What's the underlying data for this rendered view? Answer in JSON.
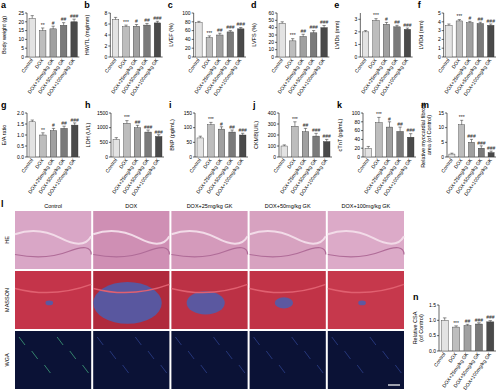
{
  "chart_data": [
    {
      "type": "bar",
      "title": "a",
      "y_label": "Body weight (g)",
      "categories": [
        "Control",
        "DOX",
        "DOX+25mg/kg GK",
        "DOX+50mg/kg GK",
        "DOX+100mg/kg GK"
      ],
      "values": [
        22,
        15,
        16,
        18,
        20
      ],
      "errors": [
        1.5,
        1.5,
        1.5,
        1.5,
        1.5
      ],
      "annotations": [
        null,
        "**",
        "#",
        "##",
        "###"
      ],
      "colors": [
        "#e3e3e3",
        "#bdbdbd",
        "#a0a0a0",
        "#7a7a7a",
        "#4a4a4a"
      ],
      "ylim": [
        0,
        25
      ],
      "yticks": [
        0,
        5,
        10,
        15,
        20,
        25
      ]
    },
    {
      "type": "bar",
      "title": "b",
      "y_label": "HW/TL (mg/mm)",
      "categories": [
        "Control",
        "DOX",
        "DOX+25mg/kg GK",
        "DOX+50mg/kg GK",
        "DOX+100mg/kg GK"
      ],
      "values": [
        6.8,
        5.5,
        5.6,
        5.8,
        6.2
      ],
      "errors": [
        0.4,
        0.3,
        0.3,
        0.3,
        0.3
      ],
      "annotations": [
        null,
        "***",
        "#",
        "##",
        "###"
      ],
      "colors": [
        "#e3e3e3",
        "#bdbdbd",
        "#a0a0a0",
        "#7a7a7a",
        "#4a4a4a"
      ],
      "ylim": [
        0,
        8
      ],
      "yticks": [
        0,
        2,
        4,
        6,
        8
      ]
    },
    {
      "type": "bar",
      "title": "c",
      "y_label": "LVEF (%)",
      "categories": [
        "Control",
        "DOX",
        "DOX+25mg/kg GK",
        "DOX+50mg/kg GK",
        "DOX+100mg/kg GK"
      ],
      "values": [
        78,
        44,
        50,
        57,
        64
      ],
      "errors": [
        3,
        4,
        4,
        3,
        3
      ],
      "annotations": [
        null,
        "***",
        "##",
        "###",
        "###"
      ],
      "colors": [
        "#e3e3e3",
        "#bdbdbd",
        "#a0a0a0",
        "#7a7a7a",
        "#4a4a4a"
      ],
      "ylim": [
        0,
        100
      ],
      "yticks": [
        0,
        20,
        40,
        60,
        80,
        100
      ]
    },
    {
      "type": "bar",
      "title": "d",
      "y_label": "LVFS (%)",
      "categories": [
        "Control",
        "DOX",
        "DOX+25mg/kg GK",
        "DOX+50mg/kg GK",
        "DOX+100mg/kg GK"
      ],
      "values": [
        46,
        22,
        28,
        33,
        40
      ],
      "errors": [
        2,
        3,
        3,
        3,
        3
      ],
      "annotations": [
        null,
        "***",
        "##",
        "###",
        "###"
      ],
      "colors": [
        "#e3e3e3",
        "#bdbdbd",
        "#a0a0a0",
        "#7a7a7a",
        "#4a4a4a"
      ],
      "ylim": [
        0,
        60
      ],
      "yticks": [
        0,
        10,
        20,
        30,
        40,
        50,
        60
      ]
    },
    {
      "type": "bar",
      "title": "e",
      "y_label": "LVIDs (mm)",
      "categories": [
        "Control",
        "DOX",
        "DOX+25mg/kg GK",
        "DOX+50mg/kg GK",
        "DOX+100mg/kg GK"
      ],
      "values": [
        2.0,
        2.9,
        2.6,
        2.4,
        2.2
      ],
      "errors": [
        0.1,
        0.15,
        0.15,
        0.12,
        0.1
      ],
      "annotations": [
        null,
        "***",
        "#",
        "##",
        "###"
      ],
      "colors": [
        "#e3e3e3",
        "#bdbdbd",
        "#a0a0a0",
        "#7a7a7a",
        "#4a4a4a"
      ],
      "ylim": [
        0,
        3.5
      ],
      "yticks": [
        0,
        1,
        2,
        3
      ]
    },
    {
      "type": "bar",
      "title": "f",
      "y_label": "LVIDd (mm)",
      "categories": [
        "Control",
        "DOX",
        "DOX+25mg/kg GK",
        "DOX+50mg/kg GK",
        "DOX+100mg/kg GK"
      ],
      "values": [
        3.6,
        4.1,
        3.9,
        3.8,
        3.6
      ],
      "errors": [
        0.15,
        0.15,
        0.15,
        0.15,
        0.15
      ],
      "annotations": [
        null,
        "***",
        "#",
        "##",
        "###"
      ],
      "colors": [
        "#e3e3e3",
        "#bdbdbd",
        "#a0a0a0",
        "#7a7a7a",
        "#4a4a4a"
      ],
      "ylim": [
        0,
        5
      ],
      "yticks": [
        0,
        1,
        2,
        3,
        4,
        5
      ]
    },
    {
      "type": "bar",
      "title": "g",
      "y_label": "E/A ratio",
      "categories": [
        "Control",
        "DOX",
        "DOX+25mg/kg GK",
        "DOX+50mg/kg GK",
        "DOX+100mg/kg GK"
      ],
      "values": [
        1.6,
        1.0,
        1.2,
        1.3,
        1.45
      ],
      "errors": [
        0.08,
        0.1,
        0.1,
        0.1,
        0.1
      ],
      "annotations": [
        null,
        "**",
        "#",
        "##",
        "###"
      ],
      "colors": [
        "#e3e3e3",
        "#bdbdbd",
        "#a0a0a0",
        "#7a7a7a",
        "#4a4a4a"
      ],
      "ylim": [
        0,
        2
      ],
      "yticks": [
        {
          "value": 0,
          "label": "0.0"
        },
        {
          "value": 0.5,
          "label": "0.5"
        },
        {
          "value": 1,
          "label": "1.0"
        },
        {
          "value": 1.5,
          "label": "1.5"
        },
        {
          "value": 2,
          "label": "2.0"
        }
      ]
    },
    {
      "type": "bar",
      "title": "h",
      "y_label": "LDH (U/L)",
      "categories": [
        "Control",
        "DOX",
        "DOX+25mg/kg GK",
        "DOX+50mg/kg GK",
        "DOX+100mg/kg GK"
      ],
      "values": [
        600,
        1150,
        1000,
        850,
        700
      ],
      "errors": [
        60,
        90,
        80,
        70,
        60
      ],
      "annotations": [
        null,
        "***",
        "##",
        "###",
        "###"
      ],
      "colors": [
        "#e3e3e3",
        "#bdbdbd",
        "#a0a0a0",
        "#7a7a7a",
        "#4a4a4a"
      ],
      "ylim": [
        0,
        1500
      ],
      "yticks": [
        0,
        500,
        1000,
        1500
      ]
    },
    {
      "type": "bar",
      "title": "i",
      "y_label": "BNP (pg/mL)",
      "categories": [
        "Control",
        "DOX",
        "DOX+25mg/kg GK",
        "DOX+50mg/kg GK",
        "DOX+100mg/kg GK"
      ],
      "values": [
        65,
        110,
        95,
        85,
        75
      ],
      "errors": [
        6,
        8,
        8,
        7,
        6
      ],
      "annotations": [
        null,
        "***",
        "#",
        "##",
        "###"
      ],
      "colors": [
        "#e3e3e3",
        "#bdbdbd",
        "#a0a0a0",
        "#7a7a7a",
        "#4a4a4a"
      ],
      "ylim": [
        0,
        150
      ],
      "yticks": [
        0,
        50,
        100,
        150
      ]
    },
    {
      "type": "bar",
      "title": "j",
      "y_label": "CKMB(U/L)",
      "categories": [
        "Control",
        "DOX",
        "DOX+25mg/kg GK",
        "DOX+50mg/kg GK",
        "DOX+100mg/kg GK"
      ],
      "values": [
        100,
        280,
        230,
        190,
        140
      ],
      "errors": [
        10,
        40,
        30,
        25,
        20
      ],
      "annotations": [
        null,
        "***",
        "##",
        "###",
        "###"
      ],
      "colors": [
        "#e3e3e3",
        "#bdbdbd",
        "#a0a0a0",
        "#7a7a7a",
        "#4a4a4a"
      ],
      "ylim": [
        0,
        400
      ],
      "yticks": [
        0,
        100,
        200,
        300,
        400
      ]
    },
    {
      "type": "bar",
      "title": "k",
      "y_label": "cTnT (pg/mL)",
      "categories": [
        "Control",
        "DOX",
        "DOX+25mg/kg GK",
        "DOX+50mg/kg GK",
        "DOX+100mg/kg GK"
      ],
      "values": [
        20,
        78,
        68,
        58,
        45
      ],
      "errors": [
        4,
        12,
        12,
        10,
        8
      ],
      "annotations": [
        null,
        "***",
        "#",
        "##",
        "###"
      ],
      "colors": [
        "#e3e3e3",
        "#bdbdbd",
        "#a0a0a0",
        "#7a7a7a",
        "#4a4a4a"
      ],
      "ylim": [
        0,
        100
      ],
      "yticks": [
        0,
        20,
        40,
        60,
        80,
        100
      ]
    },
    {
      "type": "bar",
      "title": "m",
      "y_label": "Relative myocardial fibrotic area (of Control)",
      "categories": [
        "Control",
        "DOX",
        "DOX+25mg/kg GK",
        "DOX+50mg/kg GK",
        "DOX+100mg/kg GK"
      ],
      "values": [
        1,
        11,
        5,
        3,
        1.5
      ],
      "errors": [
        0.3,
        1.5,
        1,
        0.8,
        0.5
      ],
      "annotations": [
        null,
        "***",
        "###",
        "###",
        "###"
      ],
      "colors": [
        "#e3e3e3",
        "#bdbdbd",
        "#a0a0a0",
        "#7a7a7a",
        "#4a4a4a"
      ],
      "ylim": [
        0,
        15
      ],
      "yticks": [
        0,
        5,
        10,
        15
      ]
    },
    {
      "type": "bar",
      "title": "n",
      "y_label": "Relative CSA (of Control)",
      "categories": [
        "Control",
        "DOX",
        "DOX+25mg/kg GK",
        "DOX+50mg/kg GK",
        "DOX+100mg/kg GK"
      ],
      "values": [
        1.0,
        0.78,
        0.83,
        0.88,
        0.95
      ],
      "errors": [
        0.08,
        0.04,
        0.04,
        0.04,
        0.04
      ],
      "annotations": [
        null,
        "***",
        "##",
        "###",
        "###"
      ],
      "colors": [
        "#e3e3e3",
        "#bdbdbd",
        "#a0a0a0",
        "#7a7a7a",
        "#4a4a4a"
      ],
      "ylim": [
        0,
        1.5
      ],
      "yticks": [
        {
          "value": 0,
          "label": "0.0"
        },
        {
          "value": 0.5,
          "label": "0.5"
        },
        {
          "value": 1,
          "label": "1.0"
        },
        {
          "value": 1.5,
          "label": "1.5"
        }
      ]
    }
  ],
  "panel_l": {
    "title": "l",
    "columns": [
      "Control",
      "DOX",
      "DOX+25mg/kg GK",
      "DOX+50mg/kg GK",
      "DOX+100mg/kg GK"
    ],
    "rows": [
      "HE",
      "MASSON",
      "WGA"
    ]
  }
}
